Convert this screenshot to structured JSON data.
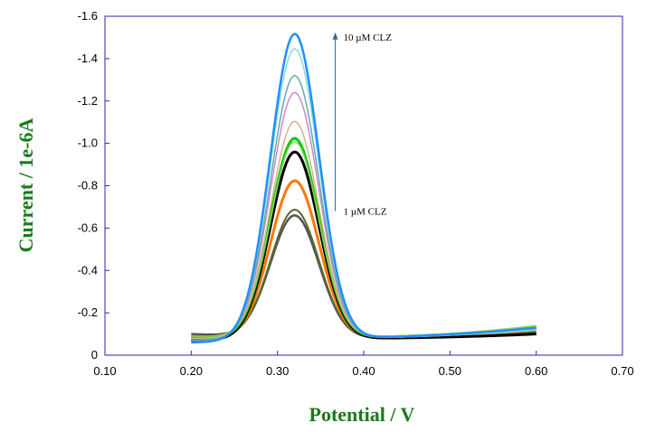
{
  "chart_data": {
    "type": "line",
    "title": "",
    "xlabel": "Potential / V",
    "ylabel": "Current / 1e-6A",
    "xlim": [
      0.1,
      0.7
    ],
    "ylim": [
      0,
      -1.6
    ],
    "x_ticks": [
      "0.10",
      "0.20",
      "0.30",
      "0.40",
      "0.50",
      "0.60",
      "0.70"
    ],
    "y_ticks": [
      "0",
      "-0.2",
      "-0.4",
      "-0.6",
      "-0.8",
      "-1.0",
      "-1.2",
      "-1.4",
      "-1.6"
    ],
    "grid": false,
    "annotations": {
      "top": "10 µM CLZ",
      "bottom": "1 µM CLZ"
    },
    "arrow": {
      "x": 0.367,
      "from_y": -0.68,
      "to_y": -1.52
    },
    "peak_potential": 0.32,
    "x_range": [
      0.2,
      0.6
    ],
    "series": [
      {
        "color": "#555555",
        "peak": -0.65,
        "width": 2.5,
        "base_left": -0.1,
        "base_right": -0.1
      },
      {
        "color": "#5a6a2a",
        "peak": -0.68,
        "width": 2,
        "base_left": -0.09,
        "base_right": -0.11
      },
      {
        "color": "#ff7700",
        "peak": -0.82,
        "width": 3,
        "base_left": -0.08,
        "base_right": -0.12
      },
      {
        "color": "#000000",
        "peak": -0.96,
        "width": 3,
        "base_left": -0.07,
        "base_right": -0.1
      },
      {
        "color": "#00cc00",
        "peak": -1.02,
        "width": 3,
        "base_left": -0.08,
        "base_right": -0.13
      },
      {
        "color": "#99cc66",
        "peak": -1.0,
        "width": 1.5,
        "base_left": -0.09,
        "base_right": -0.14
      },
      {
        "color": "#d2b48c",
        "peak": -1.1,
        "width": 1.5,
        "base_left": -0.08,
        "base_right": -0.13
      },
      {
        "color": "#cc88cc",
        "peak": -1.24,
        "width": 1.5,
        "base_left": -0.07,
        "base_right": -0.12
      },
      {
        "color": "#66aaaa",
        "peak": -1.32,
        "width": 1.5,
        "base_left": -0.07,
        "base_right": -0.12
      },
      {
        "color": "#88dddd",
        "peak": -1.45,
        "width": 1.5,
        "base_left": -0.06,
        "base_right": -0.12
      },
      {
        "color": "#1e90ff",
        "peak": -1.52,
        "width": 2.5,
        "base_left": -0.06,
        "base_right": -0.13
      }
    ]
  }
}
